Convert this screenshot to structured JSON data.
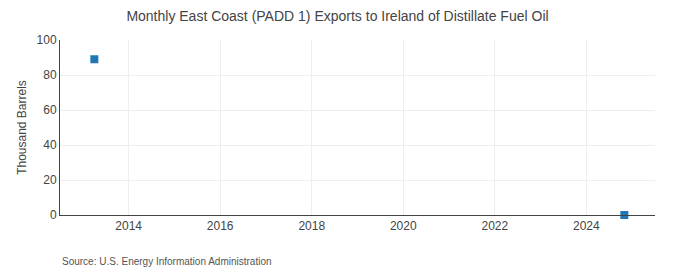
{
  "chart_data": {
    "type": "scatter",
    "title": "Monthly East Coast (PADD 1) Exports to Ireland of Distillate Fuel Oil",
    "ylabel": "Thousand Barrels",
    "annotations": [
      "Source: U.S. Energy Information Administration"
    ],
    "x": [
      2013.25,
      2024.83
    ],
    "values": [
      89,
      0
    ],
    "marker": "square",
    "xlim": [
      2012.5,
      2025.5
    ],
    "ylim": [
      0,
      100
    ],
    "xticks": [
      2014,
      2016,
      2018,
      2020,
      2022,
      2024
    ],
    "yticks": [
      0,
      20,
      40,
      60,
      80,
      100
    ],
    "grid": true
  }
}
